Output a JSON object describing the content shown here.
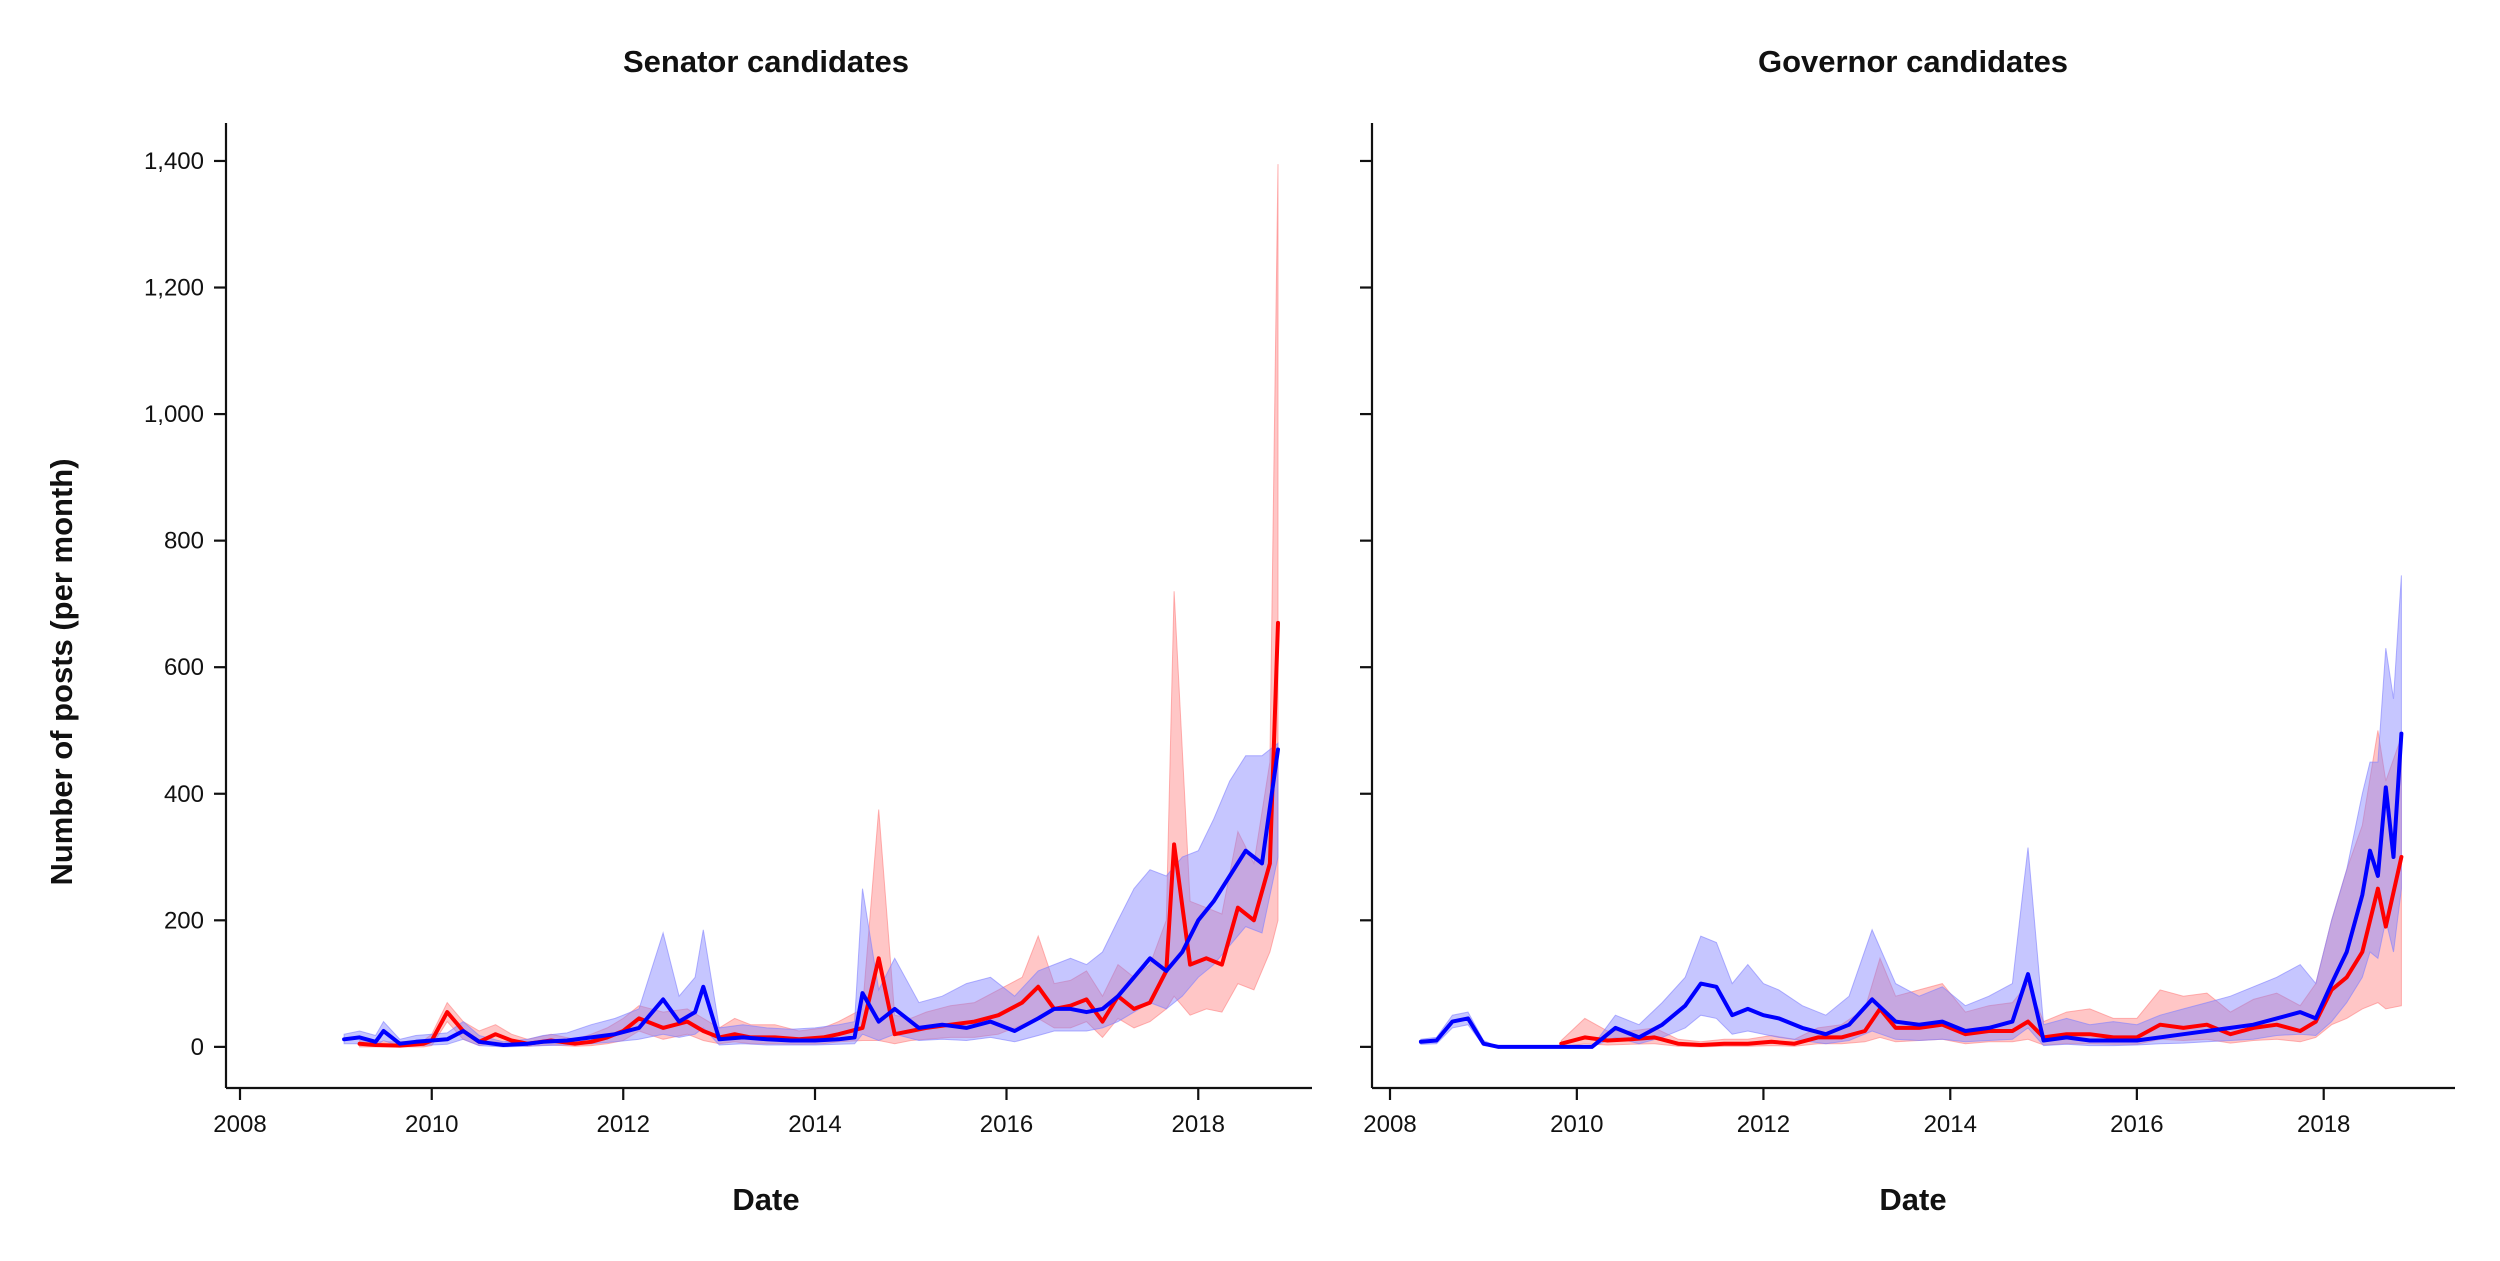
{
  "chart_data": [
    {
      "type": "line",
      "title": "Senator candidates",
      "xlabel": "Date",
      "ylabel": "Number of posts (per month)",
      "xlim": [
        "2008-01-01",
        "2019-01-01"
      ],
      "ylim": [
        -65,
        1460
      ],
      "xticks": [
        "2008",
        "2010",
        "2012",
        "2014",
        "2016",
        "2018"
      ],
      "yticks": [
        0,
        200,
        400,
        600,
        800,
        1000,
        1200,
        1400
      ],
      "ytick_labels": [
        "0",
        "200",
        "400",
        "600",
        "800",
        "1,000",
        "1,200",
        "1,400"
      ],
      "grid": false,
      "series": [
        {
          "color": "#ff0000",
          "band_color": "#ff8080",
          "x": [
            "2009-04-01",
            "2009-06-01",
            "2009-09-01",
            "2009-12-01",
            "2010-01-01",
            "2010-03-01",
            "2010-05-01",
            "2010-07-01",
            "2010-09-01",
            "2010-11-01",
            "2011-01-01",
            "2011-04-01",
            "2011-07-01",
            "2011-09-01",
            "2011-11-01",
            "2012-01-01",
            "2012-03-01",
            "2012-06-01",
            "2012-09-01",
            "2012-11-01",
            "2013-01-01",
            "2013-03-01",
            "2013-05-01",
            "2013-08-01",
            "2013-11-01",
            "2014-02-01",
            "2014-04-01",
            "2014-07-01",
            "2014-09-01",
            "2014-11-01",
            "2015-01-01",
            "2015-03-01",
            "2015-06-01",
            "2015-09-01",
            "2015-12-01",
            "2016-03-01",
            "2016-05-01",
            "2016-07-01",
            "2016-09-01",
            "2016-11-01",
            "2017-01-01",
            "2017-03-01",
            "2017-05-01",
            "2017-07-01",
            "2017-09-01",
            "2017-10-01",
            "2017-12-01",
            "2018-02-01",
            "2018-04-01",
            "2018-06-01",
            "2018-08-01",
            "2018-10-01",
            "2018-11-01"
          ],
          "y": [
            5,
            3,
            2,
            5,
            10,
            55,
            25,
            8,
            20,
            10,
            5,
            10,
            5,
            8,
            15,
            25,
            45,
            30,
            40,
            25,
            15,
            20,
            15,
            15,
            12,
            15,
            20,
            30,
            140,
            20,
            25,
            30,
            35,
            40,
            50,
            70,
            95,
            60,
            65,
            75,
            40,
            80,
            60,
            70,
            120,
            320,
            130,
            140,
            130,
            220,
            200,
            290,
            670
          ],
          "upper": [
            10,
            8,
            8,
            10,
            20,
            70,
            40,
            25,
            35,
            20,
            12,
            20,
            12,
            20,
            30,
            45,
            65,
            55,
            60,
            45,
            30,
            45,
            35,
            35,
            25,
            30,
            40,
            60,
            375,
            50,
            45,
            55,
            65,
            70,
            90,
            110,
            175,
            100,
            105,
            120,
            80,
            130,
            110,
            130,
            200,
            720,
            230,
            220,
            210,
            340,
            290,
            450,
            1395
          ],
          "lower": [
            0,
            0,
            0,
            0,
            2,
            40,
            12,
            2,
            8,
            3,
            1,
            3,
            1,
            2,
            5,
            10,
            25,
            12,
            20,
            10,
            5,
            8,
            5,
            5,
            4,
            5,
            8,
            10,
            10,
            5,
            10,
            12,
            15,
            15,
            20,
            35,
            45,
            30,
            30,
            40,
            15,
            45,
            30,
            40,
            60,
            80,
            50,
            60,
            55,
            100,
            90,
            150,
            200
          ]
        },
        {
          "color": "#0000ff",
          "band_color": "#8080ff",
          "x": [
            "2009-02-01",
            "2009-04-01",
            "2009-06-01",
            "2009-07-01",
            "2009-09-01",
            "2009-11-01",
            "2010-01-01",
            "2010-03-01",
            "2010-05-01",
            "2010-07-01",
            "2010-10-01",
            "2011-01-01",
            "2011-03-01",
            "2011-06-01",
            "2011-09-01",
            "2011-12-01",
            "2012-03-01",
            "2012-06-01",
            "2012-08-01",
            "2012-10-01",
            "2012-11-01",
            "2013-01-01",
            "2013-04-01",
            "2013-07-01",
            "2013-10-01",
            "2014-01-01",
            "2014-04-01",
            "2014-06-01",
            "2014-07-01",
            "2014-09-01",
            "2014-11-01",
            "2015-02-01",
            "2015-05-01",
            "2015-08-01",
            "2015-11-01",
            "2016-02-01",
            "2016-05-01",
            "2016-07-01",
            "2016-09-01",
            "2016-11-01",
            "2017-01-01",
            "2017-03-01",
            "2017-05-01",
            "2017-07-01",
            "2017-09-01",
            "2017-11-01",
            "2018-01-01",
            "2018-03-01",
            "2018-05-01",
            "2018-07-01",
            "2018-09-01",
            "2018-11-01"
          ],
          "y": [
            12,
            15,
            8,
            25,
            5,
            8,
            10,
            12,
            25,
            8,
            3,
            5,
            8,
            10,
            15,
            20,
            30,
            75,
            40,
            55,
            95,
            12,
            15,
            12,
            10,
            10,
            12,
            15,
            85,
            40,
            60,
            30,
            35,
            30,
            40,
            25,
            45,
            60,
            60,
            55,
            60,
            80,
            110,
            140,
            120,
            150,
            200,
            230,
            270,
            310,
            290,
            470
          ],
          "upper": [
            20,
            25,
            18,
            40,
            12,
            18,
            20,
            22,
            40,
            18,
            8,
            12,
            18,
            22,
            35,
            45,
            60,
            180,
            80,
            110,
            185,
            30,
            35,
            30,
            28,
            30,
            35,
            40,
            250,
            90,
            140,
            70,
            80,
            100,
            110,
            80,
            120,
            130,
            140,
            130,
            150,
            200,
            250,
            280,
            270,
            300,
            310,
            360,
            420,
            460,
            460,
            480
          ],
          "lower": [
            5,
            5,
            2,
            10,
            1,
            2,
            3,
            4,
            12,
            2,
            0,
            1,
            2,
            3,
            5,
            8,
            12,
            20,
            15,
            20,
            30,
            3,
            5,
            3,
            3,
            3,
            4,
            5,
            20,
            10,
            20,
            10,
            12,
            10,
            15,
            8,
            18,
            25,
            25,
            25,
            30,
            40,
            55,
            70,
            60,
            80,
            110,
            130,
            160,
            190,
            180,
            300
          ]
        }
      ]
    },
    {
      "type": "line",
      "title": "Governor candidates",
      "xlabel": "Date",
      "xlim": [
        "2008-01-01",
        "2019-04-01"
      ],
      "ylim": [
        -65,
        1460
      ],
      "xticks": [
        "2008",
        "2010",
        "2012",
        "2014",
        "2016",
        "2018"
      ],
      "grid": false,
      "series": [
        {
          "color": "#ff0000",
          "band_color": "#ff8080",
          "x": [
            "2009-11-01",
            "2010-02-01",
            "2010-05-01",
            "2010-08-01",
            "2010-11-01",
            "2011-02-01",
            "2011-05-01",
            "2011-08-01",
            "2011-11-01",
            "2012-02-01",
            "2012-05-01",
            "2012-08-01",
            "2012-11-01",
            "2013-02-01",
            "2013-04-01",
            "2013-06-01",
            "2013-09-01",
            "2013-12-01",
            "2014-03-01",
            "2014-06-01",
            "2014-09-01",
            "2014-11-01",
            "2015-01-01",
            "2015-04-01",
            "2015-07-01",
            "2015-10-01",
            "2016-01-01",
            "2016-04-01",
            "2016-07-01",
            "2016-10-01",
            "2017-01-01",
            "2017-04-01",
            "2017-07-01",
            "2017-10-01",
            "2017-12-01",
            "2018-02-01",
            "2018-04-01",
            "2018-06-01",
            "2018-08-01",
            "2018-09-01",
            "2018-11-01"
          ],
          "y": [
            5,
            15,
            10,
            12,
            15,
            5,
            3,
            5,
            5,
            8,
            5,
            15,
            15,
            25,
            60,
            30,
            30,
            35,
            20,
            25,
            25,
            40,
            15,
            20,
            20,
            15,
            15,
            35,
            30,
            35,
            20,
            30,
            35,
            25,
            40,
            90,
            110,
            150,
            250,
            190,
            300
          ],
          "upper": [
            10,
            45,
            25,
            25,
            30,
            12,
            8,
            12,
            12,
            18,
            12,
            30,
            35,
            60,
            140,
            80,
            90,
            100,
            55,
            65,
            70,
            100,
            40,
            55,
            60,
            45,
            45,
            90,
            80,
            85,
            55,
            75,
            85,
            65,
            100,
            200,
            280,
            350,
            500,
            420,
            490
          ],
          "lower": [
            0,
            5,
            3,
            4,
            5,
            1,
            0,
            1,
            1,
            2,
            1,
            5,
            5,
            8,
            15,
            8,
            10,
            12,
            5,
            8,
            8,
            12,
            3,
            5,
            5,
            4,
            4,
            12,
            10,
            12,
            6,
            10,
            12,
            8,
            15,
            35,
            45,
            60,
            70,
            60,
            65
          ]
        },
        {
          "color": "#0000ff",
          "band_color": "#8080ff",
          "x": [
            "2008-05-01",
            "2008-07-01",
            "2008-09-01",
            "2008-11-01",
            "2009-01-01",
            "2009-03-01",
            "2009-06-01",
            "2009-09-01",
            "2009-12-01",
            "2010-03-01",
            "2010-06-01",
            "2010-09-01",
            "2010-12-01",
            "2011-03-01",
            "2011-05-01",
            "2011-07-01",
            "2011-09-01",
            "2011-11-01",
            "2012-01-01",
            "2012-03-01",
            "2012-06-01",
            "2012-09-01",
            "2012-12-01",
            "2013-03-01",
            "2013-06-01",
            "2013-09-01",
            "2013-12-01",
            "2014-03-01",
            "2014-06-01",
            "2014-09-01",
            "2014-11-01",
            "2015-01-01",
            "2015-04-01",
            "2015-07-01",
            "2015-10-01",
            "2016-01-01",
            "2016-04-01",
            "2016-07-01",
            "2016-10-01",
            "2017-01-01",
            "2017-04-01",
            "2017-07-01",
            "2017-10-01",
            "2017-12-01",
            "2018-02-01",
            "2018-04-01",
            "2018-06-01",
            "2018-07-01",
            "2018-08-01",
            "2018-09-01",
            "2018-10-01",
            "2018-11-01"
          ],
          "y": [
            8,
            10,
            40,
            45,
            5,
            0,
            0,
            0,
            0,
            0,
            30,
            15,
            35,
            65,
            100,
            95,
            50,
            60,
            50,
            45,
            30,
            20,
            35,
            75,
            40,
            35,
            40,
            25,
            30,
            40,
            115,
            10,
            15,
            10,
            10,
            10,
            15,
            20,
            25,
            30,
            35,
            45,
            55,
            45,
            100,
            150,
            240,
            310,
            270,
            410,
            300,
            495
          ],
          "upper": [
            12,
            15,
            50,
            55,
            10,
            0,
            0,
            0,
            0,
            0,
            50,
            35,
            70,
            110,
            175,
            165,
            100,
            130,
            100,
            90,
            65,
            50,
            80,
            185,
            100,
            80,
            95,
            65,
            80,
            100,
            315,
            35,
            45,
            35,
            40,
            35,
            50,
            60,
            70,
            80,
            95,
            110,
            130,
            100,
            200,
            280,
            400,
            450,
            450,
            630,
            550,
            745
          ],
          "lower": [
            4,
            5,
            30,
            35,
            2,
            0,
            0,
            0,
            0,
            0,
            15,
            5,
            15,
            30,
            50,
            45,
            20,
            25,
            20,
            15,
            10,
            5,
            10,
            25,
            12,
            10,
            12,
            8,
            10,
            12,
            30,
            2,
            4,
            2,
            2,
            3,
            5,
            6,
            8,
            10,
            12,
            18,
            20,
            18,
            40,
            70,
            110,
            150,
            140,
            200,
            150,
            250
          ]
        }
      ]
    }
  ]
}
